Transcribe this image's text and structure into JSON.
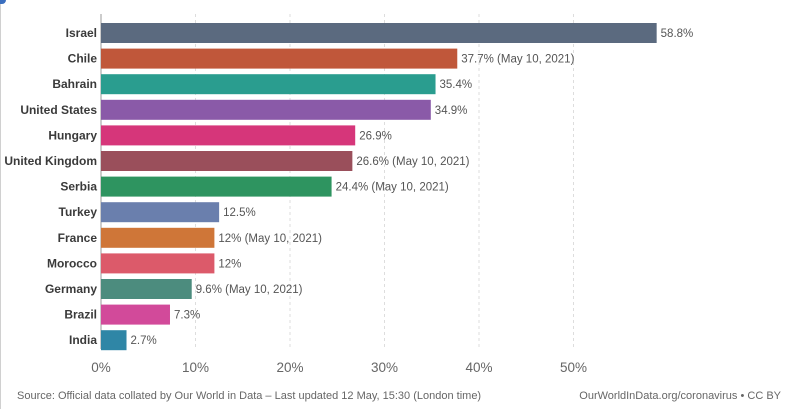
{
  "colors": {
    "grid": "#dddddd",
    "axis": "#999999"
  },
  "chart_data": {
    "type": "bar",
    "orientation": "horizontal",
    "categories": [
      "Israel",
      "Chile",
      "Bahrain",
      "United States",
      "Hungary",
      "United Kingdom",
      "Serbia",
      "Turkey",
      "France",
      "Morocco",
      "Germany",
      "Brazil",
      "India"
    ],
    "values": [
      58.8,
      37.7,
      35.4,
      34.9,
      26.9,
      26.6,
      24.4,
      12.5,
      12,
      12,
      9.6,
      7.3,
      2.7
    ],
    "value_labels": [
      "58.8%",
      "37.7% (May 10, 2021)",
      "35.4%",
      "34.9%",
      "26.9%",
      "26.6% (May 10, 2021)",
      "24.4% (May 10, 2021)",
      "12.5%",
      "12% (May 10, 2021)",
      "12%",
      "9.6% (May 10, 2021)",
      "7.3%",
      "2.7%"
    ],
    "bar_colors": [
      "#5b6a7f",
      "#c0573a",
      "#2a9d8f",
      "#8a5aa8",
      "#d6367a",
      "#9a4f5b",
      "#2e9460",
      "#6a7fad",
      "#cf7638",
      "#dc5a6a",
      "#4c8c7e",
      "#d24a9a",
      "#2f86a6"
    ],
    "xlim": [
      0,
      58.8
    ],
    "x_ticks": [
      0,
      10,
      20,
      30,
      40,
      50
    ],
    "x_tick_labels": [
      "0%",
      "10%",
      "20%",
      "30%",
      "40%",
      "50%"
    ],
    "grid": true
  },
  "footer": {
    "source": "Source: Official data collated by Our World in Data – Last updated 12 May, 15:30 (London time)",
    "credit": "OurWorldInData.org/coronavirus • CC BY"
  }
}
